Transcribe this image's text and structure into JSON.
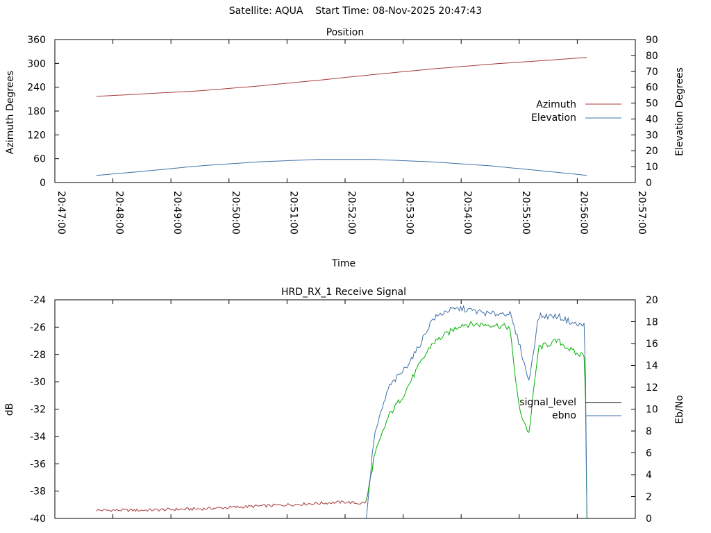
{
  "header": {
    "satellite": "Satellite: AQUA",
    "start_time": "Start Time: 08-Nov-2025 20:47:43"
  },
  "colors": {
    "azimuth": "#a83a3a",
    "elevation": "#3d6fa8",
    "signal_level": "#a83a3a",
    "signal_legend": "#000000",
    "ebno_green": "#00b000",
    "ebno_blue": "#3d6fa8"
  },
  "chart_data": [
    {
      "type": "line",
      "title": "Position",
      "xlabel": "Time",
      "ylabel": "Azimuth Degrees",
      "y2label": "Elevation Degrees",
      "ylim": [
        0,
        360
      ],
      "y2lim": [
        0,
        90
      ],
      "yticks": [
        "0",
        "60",
        "120",
        "180",
        "240",
        "300",
        "360"
      ],
      "y2ticks": [
        "0",
        "10",
        "20",
        "30",
        "40",
        "50",
        "60",
        "70",
        "80",
        "90"
      ],
      "xticks": [
        "20:47:00",
        "20:48:00",
        "20:49:00",
        "20:50:00",
        "20:51:00",
        "20:52:00",
        "20:53:00",
        "20:54:00",
        "20:55:00",
        "20:56:00",
        "20:57:00"
      ],
      "legend_position": "right",
      "series": [
        {
          "name": "Azimuth",
          "axis": "y",
          "x": [
            "20:47:43",
            "20:48:30",
            "20:49:30",
            "20:50:30",
            "20:51:30",
            "20:52:30",
            "20:53:30",
            "20:54:30",
            "20:55:30",
            "20:56:10"
          ],
          "values": [
            217,
            223,
            231,
            243,
            257,
            272,
            286,
            298,
            308,
            315
          ]
        },
        {
          "name": "Elevation",
          "axis": "y2",
          "x": [
            "20:47:43",
            "20:48:30",
            "20:49:30",
            "20:50:30",
            "20:51:30",
            "20:52:30",
            "20:53:30",
            "20:54:30",
            "20:55:30",
            "20:56:10"
          ],
          "values": [
            4.5,
            7,
            10.5,
            13,
            14.5,
            14.5,
            13,
            10.5,
            7,
            4.5
          ]
        }
      ]
    },
    {
      "type": "line",
      "title": "HRD_RX_1 Receive Signal",
      "xlabel": "",
      "ylabel": "dB",
      "y2label": "Eb/No",
      "ylim": [
        -40,
        -24
      ],
      "y2lim": [
        0,
        20
      ],
      "yticks": [
        "-40",
        "-38",
        "-36",
        "-34",
        "-32",
        "-30",
        "-28",
        "-26",
        "-24"
      ],
      "y2ticks": [
        "0",
        "2",
        "4",
        "6",
        "8",
        "10",
        "12",
        "14",
        "16",
        "18",
        "20"
      ],
      "legend_position": "right",
      "series": [
        {
          "name": "signal_level",
          "axis": "y",
          "x": [
            "20:47:43",
            "20:48:30",
            "20:49:30",
            "20:50:30",
            "20:51:30",
            "20:52:00",
            "20:52:15",
            "20:52:22",
            "20:52:30",
            "20:52:45",
            "20:53:00",
            "20:53:15",
            "20:53:30",
            "20:54:00",
            "20:54:30",
            "20:54:50",
            "20:55:00",
            "20:55:10",
            "20:55:20",
            "20:55:40",
            "20:56:00",
            "20:56:08",
            "20:56:10"
          ],
          "values": [
            -39.4,
            -39.4,
            -39.3,
            -39.1,
            -38.9,
            -38.8,
            -38.9,
            -38.8,
            -35.5,
            -32.5,
            -31,
            -29,
            -27.2,
            -25.8,
            -25.8,
            -26,
            -32,
            -33.8,
            -27.5,
            -27,
            -28,
            -28,
            -40
          ]
        },
        {
          "name": "ebno",
          "axis": "y2",
          "x": [
            "20:52:22",
            "20:52:30",
            "20:52:45",
            "20:53:00",
            "20:53:15",
            "20:53:30",
            "20:53:45",
            "20:54:00",
            "20:54:30",
            "20:54:50",
            "20:55:00",
            "20:55:10",
            "20:55:20",
            "20:55:40",
            "20:56:00",
            "20:56:08",
            "20:56:10"
          ],
          "values": [
            0,
            7.5,
            12,
            13.5,
            15.5,
            18.2,
            19,
            19.2,
            18.7,
            18.8,
            16,
            12.5,
            18.5,
            18.5,
            17.7,
            17.7,
            0
          ]
        }
      ]
    }
  ]
}
